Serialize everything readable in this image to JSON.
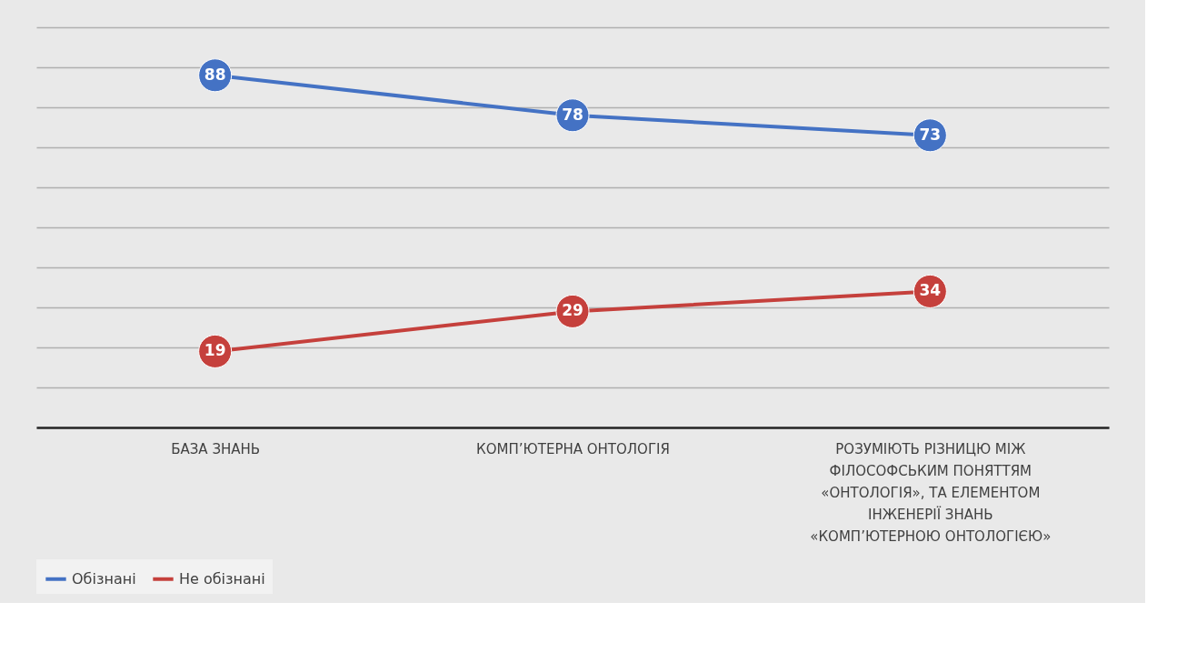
{
  "chart_data": {
    "type": "line",
    "categories": [
      "БАЗА ЗНАНЬ",
      "КОМП’ЮТЕРНА ОНТОЛОГІЯ",
      "РОЗУМІЮТЬ РІЗНИЦЮ МІЖ ФІЛОСОФСЬКИМ ПОНЯТТЯМ «ОНТОЛОГІЯ», ТА ЕЛЕМЕНТОМ ІНЖЕНЕРІЇ ЗНАНЬ «КОМП’ЮТЕРНОЮ ОНТОЛОГІЄЮ»"
    ],
    "series": [
      {
        "name": "Обізнані",
        "color": "#4472c4",
        "values": [
          88,
          78,
          73
        ]
      },
      {
        "name": "Не обізнані",
        "color": "#c5403c",
        "values": [
          19,
          29,
          34
        ]
      }
    ],
    "ylim": [
      0,
      100
    ],
    "yticks": [
      {
        "value": 0,
        "label": null
      },
      {
        "value": 10,
        "label": null
      },
      {
        "value": 20,
        "label": null
      },
      {
        "value": 30,
        "label": null
      },
      {
        "value": 40,
        "label": null
      },
      {
        "value": 50,
        "label": null
      },
      {
        "value": 60,
        "label": null
      },
      {
        "value": 70,
        "label": null
      },
      {
        "value": 80,
        "label": null
      },
      {
        "value": 90,
        "label": null
      },
      {
        "value": 100,
        "label": null
      }
    ],
    "tick_labels": "x",
    "grid": "y",
    "legend": "bottom",
    "marker": "circle",
    "line_style": "solid",
    "data_labels": true
  }
}
